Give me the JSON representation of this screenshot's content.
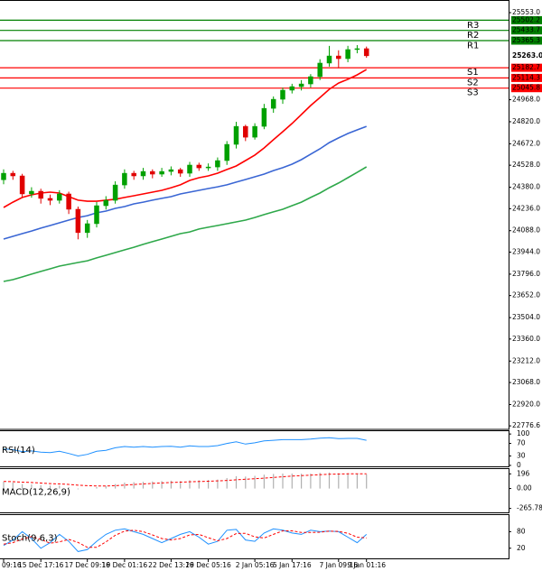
{
  "chart_data": {
    "type": "candlestick",
    "categories": [
      "09:16",
      null,
      null,
      null,
      "15 Dec 17:16",
      null,
      null,
      null,
      null,
      "17 Dec 09:16",
      null,
      null,
      null,
      "19 Dec 01:16",
      null,
      null,
      null,
      null,
      "22 Dec 13:16",
      null,
      null,
      null,
      "29 Dec 05:16",
      null,
      null,
      null,
      null,
      "2 Jan 05:16",
      null,
      null,
      null,
      "5 Jan 17:16",
      null,
      null,
      null,
      null,
      "7 Jan 09:16",
      null,
      null,
      "9 Jan 01:16"
    ],
    "open": [
      24430,
      24474,
      24456,
      24335,
      24353,
      24305,
      24292,
      24335,
      24232,
      24075,
      24135,
      24256,
      24292,
      24395,
      24474,
      24456,
      24486,
      24468,
      24486,
      24498,
      24474,
      24529,
      24510,
      24516,
      24559,
      24668,
      24789,
      24716,
      24789,
      24910,
      24971,
      25032,
      25056,
      25074,
      25123,
      25214,
      25262,
      25244,
      25305,
      25311
    ],
    "high": [
      24500,
      24490,
      24470,
      24380,
      24370,
      24330,
      24360,
      24350,
      24250,
      24160,
      24280,
      24320,
      24420,
      24500,
      24490,
      24510,
      24500,
      24510,
      24520,
      24510,
      24550,
      24545,
      24540,
      24580,
      24690,
      24820,
      24800,
      24810,
      24940,
      24990,
      25050,
      25075,
      25100,
      25140,
      25240,
      25330,
      25300,
      25330,
      25335,
      25325
    ],
    "low": [
      24400,
      24430,
      24310,
      24310,
      24270,
      24260,
      24270,
      24200,
      24030,
      24040,
      24110,
      24230,
      24270,
      24370,
      24430,
      24430,
      24440,
      24450,
      24460,
      24450,
      24450,
      24490,
      24490,
      24490,
      24530,
      24640,
      24690,
      24700,
      24770,
      24880,
      24940,
      25010,
      25030,
      25050,
      25100,
      25190,
      25180,
      25220,
      25280,
      25250
    ],
    "close": [
      24474,
      24456,
      24335,
      24353,
      24305,
      24292,
      24335,
      24232,
      24075,
      24135,
      24256,
      24292,
      24395,
      24474,
      24456,
      24486,
      24468,
      24486,
      24498,
      24474,
      24529,
      24510,
      24516,
      24559,
      24668,
      24789,
      24716,
      24789,
      24910,
      24971,
      25032,
      25056,
      25074,
      25123,
      25214,
      25262,
      25244,
      25305,
      25311,
      25263
    ],
    "up_color": "#00a000",
    "down_color": "#e00000",
    "ylim": [
      22753,
      25638
    ],
    "yticks": [
      {
        "value": 25553.0,
        "label": "25553.0"
      },
      {
        "value": 24968.0,
        "label": "24968.0"
      },
      {
        "value": 24820.0,
        "label": "24820.0"
      },
      {
        "value": 24672.0,
        "label": "24672.0"
      },
      {
        "value": 24528.0,
        "label": "24528.0"
      },
      {
        "value": 24380.0,
        "label": "24380.0"
      },
      {
        "value": 24236.0,
        "label": "24236.0"
      },
      {
        "value": 24088.0,
        "label": "24088.0"
      },
      {
        "value": 23944.0,
        "label": "23944.0"
      },
      {
        "value": 23796.0,
        "label": "23796.0"
      },
      {
        "value": 23652.0,
        "label": "23652.0"
      },
      {
        "value": 23504.0,
        "label": "23504.0"
      },
      {
        "value": 23360.0,
        "label": "23360.0"
      },
      {
        "value": 23212.0,
        "label": "23212.0"
      },
      {
        "value": 23068.0,
        "label": "23068.0"
      },
      {
        "value": 22920.0,
        "label": "22920.0"
      },
      {
        "value": 22776.6,
        "label": "22776.6"
      }
    ],
    "last_price": {
      "value": 25263.0,
      "label": "25263.0"
    },
    "levels": [
      {
        "name": "R3",
        "value": 25502.2,
        "label": "25502.2",
        "color": "#008000"
      },
      {
        "name": "R2",
        "value": 25433.7,
        "label": "25433.7",
        "color": "#008000"
      },
      {
        "name": "R1",
        "value": 25365.3,
        "label": "25365.3",
        "color": "#008000"
      },
      {
        "name": "S1",
        "value": 25182.7,
        "label": "25182.7",
        "color": "#ff0000"
      },
      {
        "name": "S2",
        "value": 25114.3,
        "label": "25114.3",
        "color": "#ff0000"
      },
      {
        "name": "S3",
        "value": 25045.8,
        "label": "25045.8",
        "color": "#ff0000"
      }
    ],
    "moving_averages": [
      {
        "color": "#ff0000",
        "values": [
          24244,
          24280,
          24311,
          24329,
          24341,
          24347,
          24341,
          24317,
          24293,
          24286,
          24286,
          24293,
          24299,
          24311,
          24323,
          24335,
          24347,
          24359,
          24377,
          24396,
          24426,
          24444,
          24456,
          24474,
          24499,
          24523,
          24559,
          24596,
          24644,
          24699,
          24753,
          24808,
          24868,
          24929,
          24983,
          25038,
          25080,
          25105,
          25135,
          25171
        ]
      },
      {
        "color": "#3a66d4",
        "values": [
          24032,
          24050,
          24068,
          24086,
          24105,
          24123,
          24141,
          24159,
          24177,
          24189,
          24208,
          24220,
          24238,
          24250,
          24268,
          24280,
          24293,
          24305,
          24317,
          24335,
          24347,
          24359,
          24371,
          24383,
          24396,
          24414,
          24432,
          24450,
          24468,
          24492,
          24511,
          24535,
          24565,
          24602,
          24638,
          24680,
          24711,
          24741,
          24765,
          24789
        ]
      },
      {
        "color": "#2ea84a",
        "values": [
          23747,
          23759,
          23777,
          23796,
          23814,
          23832,
          23850,
          23862,
          23874,
          23886,
          23905,
          23923,
          23941,
          23959,
          23977,
          23996,
          24014,
          24032,
          24050,
          24068,
          24080,
          24099,
          24111,
          24123,
          24135,
          24147,
          24159,
          24177,
          24196,
          24214,
          24232,
          24256,
          24280,
          24311,
          24341,
          24377,
          24408,
          24444,
          24480,
          24517
        ]
      }
    ],
    "indicators": [
      {
        "type": "line",
        "title": "RSI(14)",
        "ylim": [
          -6,
          109
        ],
        "yticks": [
          100,
          70,
          30,
          0
        ],
        "series": [
          {
            "color": "#1e90ff",
            "values": [
              52,
              50,
              44,
              46,
              42,
              41,
              45,
              38,
              30,
              35,
              45,
              48,
              56,
              60,
              58,
              60,
              58,
              60,
              61,
              58,
              62,
              60,
              60,
              63,
              70,
              75,
              68,
              72,
              78,
              80,
              82,
              82,
              82,
              84,
              87,
              88,
              85,
              86,
              86,
              80
            ]
          }
        ]
      },
      {
        "type": "macd",
        "title": "MACD(12,26,9)",
        "ylim": [
          -330,
          260
        ],
        "yticks": [
          196,
          {
            "value": 0,
            "label": "0.00"
          },
          {
            "value": -265.78,
            "label": "-265.78"
          }
        ],
        "histogram": {
          "color": "#b0b0b0",
          "values": [
            90,
            80,
            60,
            55,
            45,
            40,
            40,
            20,
            -10,
            0,
            20,
            35,
            60,
            80,
            85,
            90,
            95,
            100,
            105,
            100,
            110,
            110,
            115,
            120,
            140,
            165,
            160,
            170,
            185,
            195,
            200,
            200,
            198,
            200,
            210,
            215,
            205,
            205,
            200,
            190
          ]
        },
        "series": [
          {
            "color": "#ff0000",
            "dash": true,
            "values": [
              95,
              92,
              86,
              80,
              73,
              66,
              61,
              55,
              45,
              38,
              35,
              34,
              38,
              46,
              54,
              61,
              68,
              75,
              81,
              85,
              90,
              94,
              98,
              102,
              108,
              117,
              124,
              131,
              138,
              148,
              158,
              166,
              172,
              178,
              185,
              191,
              194,
              196,
              197,
              196
            ]
          }
        ]
      },
      {
        "type": "line",
        "title": "Stoch(9,6,3)",
        "ylim": [
          -20,
          140
        ],
        "yticks": [
          80,
          20
        ],
        "series": [
          {
            "color": "#1e90ff",
            "values": [
              30,
              50,
              80,
              55,
              20,
              40,
              70,
              45,
              8,
              15,
              45,
              70,
              85,
              90,
              80,
              70,
              55,
              40,
              55,
              70,
              80,
              60,
              35,
              45,
              85,
              88,
              50,
              45,
              75,
              90,
              85,
              75,
              70,
              85,
              80,
              82,
              80,
              60,
              40,
              70
            ]
          },
          {
            "color": "#ff0000",
            "dash": true,
            "values": [
              35,
              40,
              53,
              62,
              52,
              38,
              43,
              52,
              41,
              23,
              23,
              43,
              67,
              82,
              85,
              80,
              68,
              55,
              50,
              55,
              68,
              70,
              58,
              47,
              55,
              73,
              74,
              61,
              57,
              70,
              83,
              83,
              77,
              77,
              78,
              82,
              81,
              74,
              60,
              57
            ]
          }
        ]
      }
    ]
  }
}
